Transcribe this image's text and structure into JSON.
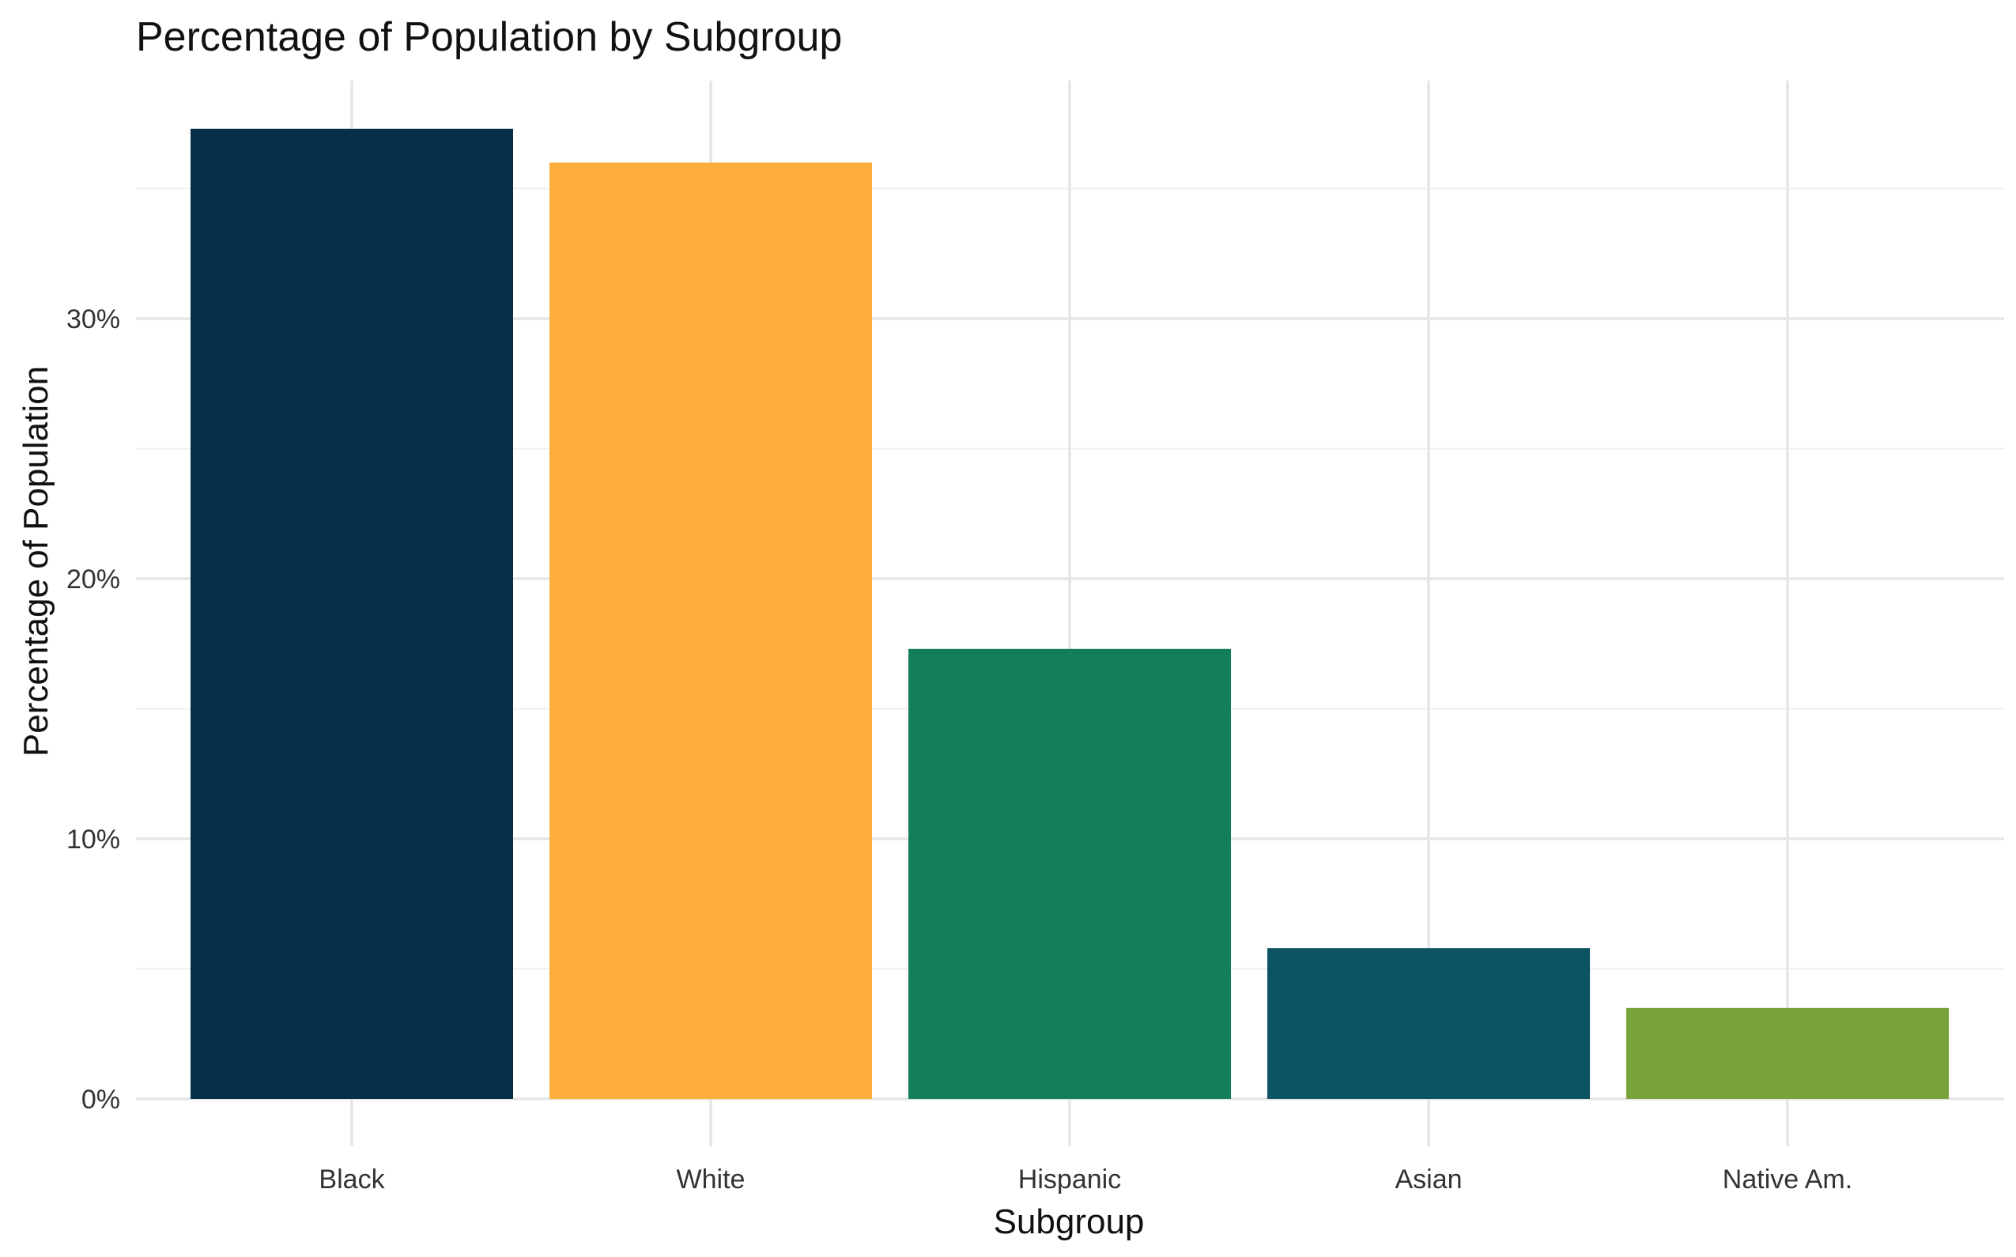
{
  "chart_data": {
    "type": "bar",
    "title": "Percentage of Population by Subgroup",
    "xlabel": "Subgroup",
    "ylabel": "Percentage of Population",
    "categories": [
      "Black",
      "White",
      "Hispanic",
      "Asian",
      "Native Am."
    ],
    "values": [
      37.3,
      36.0,
      17.3,
      5.8,
      3.5
    ],
    "colors": [
      "#062f47",
      "#feae3a",
      "#127f5a",
      "#0d5463",
      "#79a33a"
    ],
    "ylim": [
      0,
      39
    ],
    "yticks": [
      0,
      10,
      20,
      30
    ],
    "ytick_labels": [
      "0%",
      "10%",
      "20%",
      "30%"
    ],
    "grid": true,
    "legend": "none"
  }
}
